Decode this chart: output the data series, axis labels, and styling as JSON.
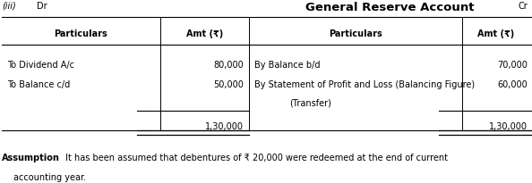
{
  "title": "General Reserve Account",
  "dr_label": "Dr",
  "cr_label": "Cr",
  "roman_label": "(iii)",
  "col_headers": [
    "Particulars",
    "Amt (₹)",
    "Particulars",
    "Amt (₹)"
  ],
  "left_rows": [
    [
      "To Dividend A/c",
      "80,000"
    ],
    [
      "To Balance c/d",
      "50,000"
    ]
  ],
  "right_rows": [
    [
      "By Balance b/d",
      "70,000"
    ],
    [
      "By Statement of Profit and Loss (Balancing Figure)",
      "60,000"
    ],
    [
      "(Transfer)",
      ""
    ]
  ],
  "left_total": "1,30,000",
  "right_total": "1,30,000",
  "assumption_bold": "Assumption",
  "assumption_text": " It has been assumed that debentures of ₹ 20,000 were redeemed at the end of current",
  "assumption_text2": "accounting year.",
  "bg_color": "#ffffff",
  "text_color": "#000000",
  "font_size": 7.0,
  "title_font_size": 9.5
}
